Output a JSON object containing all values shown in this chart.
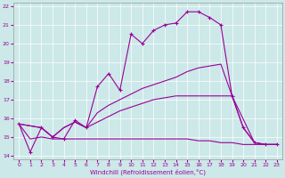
{
  "xlabel": "Windchill (Refroidissement éolien,°C)",
  "bg_color": "#cce8e8",
  "line_color": "#990099",
  "xlim": [
    -0.5,
    23.5
  ],
  "ylim": [
    13.8,
    22.2
  ],
  "yticks": [
    14,
    15,
    16,
    17,
    18,
    19,
    20,
    21,
    22
  ],
  "xticks": [
    0,
    1,
    2,
    3,
    4,
    5,
    6,
    7,
    8,
    9,
    10,
    11,
    12,
    13,
    14,
    15,
    16,
    17,
    18,
    19,
    20,
    21,
    22,
    23
  ],
  "series": [
    {
      "x": [
        0,
        1,
        2,
        3,
        4,
        5,
        6,
        7,
        8,
        9,
        10,
        11,
        12,
        13,
        14,
        15,
        16,
        17,
        18,
        19,
        20,
        21,
        22,
        23
      ],
      "y": [
        15.7,
        14.2,
        15.5,
        15.0,
        14.9,
        15.9,
        15.5,
        17.7,
        18.4,
        17.5,
        20.5,
        20.0,
        20.7,
        21.0,
        21.1,
        21.7,
        21.7,
        21.4,
        21.0,
        17.2,
        15.5,
        14.7,
        14.6,
        14.6
      ],
      "marker": "+"
    },
    {
      "x": [
        0,
        2,
        3,
        4,
        5,
        6,
        7,
        8,
        9,
        10,
        11,
        12,
        13,
        14,
        15,
        16,
        17,
        18,
        20,
        21,
        22,
        23
      ],
      "y": [
        15.7,
        15.5,
        15.0,
        15.5,
        15.8,
        15.5,
        16.3,
        16.7,
        17.0,
        17.3,
        17.6,
        17.8,
        18.0,
        18.2,
        18.5,
        18.7,
        18.8,
        18.9,
        15.5,
        14.7,
        14.6,
        14.6
      ],
      "marker": null
    },
    {
      "x": [
        0,
        2,
        3,
        4,
        5,
        6,
        7,
        8,
        9,
        10,
        11,
        12,
        13,
        14,
        15,
        16,
        17,
        18,
        19,
        21,
        22,
        23
      ],
      "y": [
        15.7,
        15.5,
        15.0,
        15.5,
        15.8,
        15.5,
        15.8,
        16.1,
        16.4,
        16.6,
        16.8,
        17.0,
        17.1,
        17.2,
        17.2,
        17.2,
        17.2,
        17.2,
        17.2,
        14.7,
        14.6,
        14.6
      ],
      "marker": null
    },
    {
      "x": [
        0,
        1,
        2,
        3,
        4,
        5,
        6,
        7,
        8,
        9,
        10,
        11,
        12,
        13,
        14,
        15,
        16,
        17,
        18,
        19,
        20,
        21,
        22,
        23
      ],
      "y": [
        15.7,
        14.9,
        15.0,
        14.9,
        14.9,
        14.9,
        14.9,
        14.9,
        14.9,
        14.9,
        14.9,
        14.9,
        14.9,
        14.9,
        14.9,
        14.9,
        14.8,
        14.8,
        14.7,
        14.7,
        14.6,
        14.6,
        14.6,
        14.6
      ],
      "marker": null
    }
  ]
}
